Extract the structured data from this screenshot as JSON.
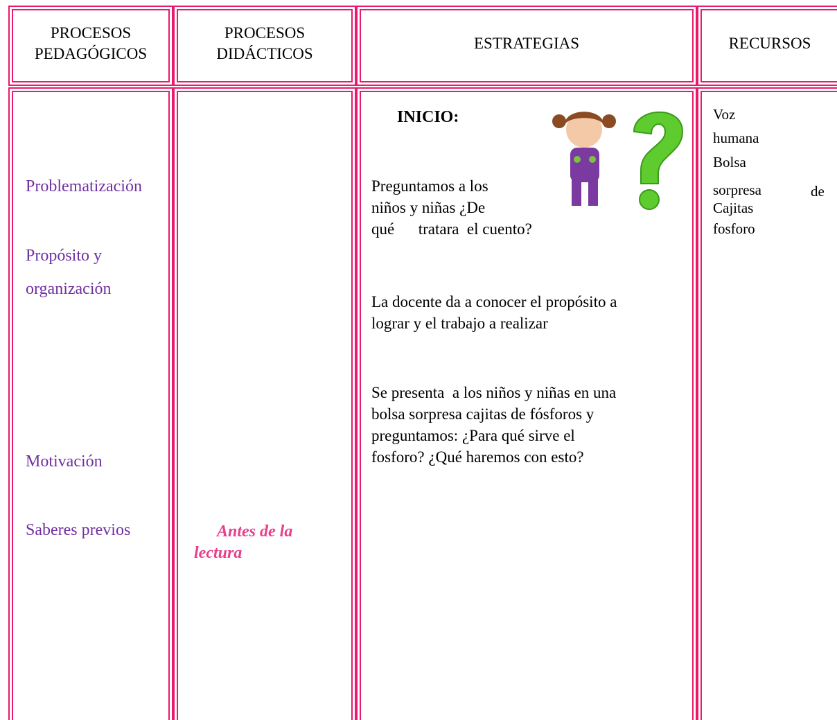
{
  "table": {
    "headers": [
      [
        "PROCESOS",
        "PEDAGÓGICOS"
      ],
      [
        "PROCESOS",
        "DIDÁCTICOS"
      ],
      [
        "ESTRATEGIAS"
      ],
      [
        "RECURSOS"
      ]
    ],
    "pedagogicos": [
      "Problematización",
      "Propósito y",
      "organización",
      "Motivación",
      "Saberes previos"
    ],
    "didacticos": [
      "Antes de la",
      "lectura"
    ],
    "estrategias": {
      "heading": "INICIO:",
      "paragraphs": [
        [
          "Preguntamos a los",
          "niños y niñas ¿De",
          "qué      tratara  el cuento?"
        ],
        [
          "La docente da a conocer el propósito a",
          "lograr y el trabajo a realizar"
        ],
        [
          "Se presenta  a los niños y niñas en una",
          "bolsa sorpresa cajitas de fósforos y",
          "preguntamos: ¿Para qué sirve el",
          "fosforo? ¿Qué haremos con esto?"
        ]
      ]
    },
    "recursos": [
      "Voz",
      "humana",
      "Bolsa",
      "sorpresa",
      "de",
      "Cajitas",
      "fosforo"
    ]
  }
}
